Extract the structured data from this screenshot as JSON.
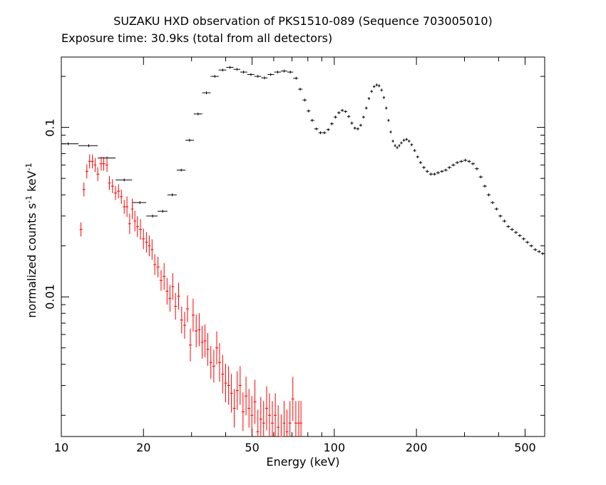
{
  "chart_data": {
    "type": "scatter",
    "title": "SUZAKU HXD observation of PKS1510-089 (Sequence 703005010)",
    "subtitle": "Exposure time: 30.9ks (total from all detectors)",
    "xlabel": "Energy (keV)",
    "ylabel": {
      "base": "normalized counts s",
      "exp1": "-1",
      "mid": " keV",
      "exp2": "-1"
    },
    "x_scale": "log",
    "y_scale": "log",
    "xlim": [
      10,
      590
    ],
    "ylim": [
      0.0015,
      0.26
    ],
    "x_ticks": [
      {
        "value": 10,
        "label": "10"
      },
      {
        "value": 20,
        "label": "20"
      },
      {
        "value": 50,
        "label": "50"
      },
      {
        "value": 100,
        "label": "100"
      },
      {
        "value": 200,
        "label": "200"
      },
      {
        "value": 500,
        "label": "500"
      }
    ],
    "y_ticks": [
      {
        "value": 0.1,
        "label": "0.1"
      },
      {
        "value": 0.01,
        "label": "0.01"
      }
    ],
    "grid": false,
    "series": [
      {
        "color": "#000000",
        "points": [
          [
            10.6,
            0.08,
            0.6
          ],
          [
            12.6,
            0.078,
            0.9
          ],
          [
            14.7,
            0.066,
            0.8
          ],
          [
            17.0,
            0.049,
            0.7
          ],
          [
            19.4,
            0.036,
            0.6
          ],
          [
            21.6,
            0.03,
            0.5
          ],
          [
            23.5,
            0.032,
            0.4
          ],
          [
            25.5,
            0.04,
            0.4
          ],
          [
            27.5,
            0.056,
            0.4
          ],
          [
            29.5,
            0.084,
            0.4
          ],
          [
            31.7,
            0.12,
            0.5
          ],
          [
            34.0,
            0.16,
            0.5
          ],
          [
            36.5,
            0.2,
            0.6
          ],
          [
            39.0,
            0.218,
            0.6
          ],
          [
            41.5,
            0.226,
            0.7
          ],
          [
            44.0,
            0.22,
            0.7
          ],
          [
            46.5,
            0.212,
            0.7
          ],
          [
            49.5,
            0.205,
            0.8
          ],
          [
            52.5,
            0.2,
            0.8
          ],
          [
            55.5,
            0.196,
            0.8
          ],
          [
            58.5,
            0.205,
            0.8
          ],
          [
            62.0,
            0.212,
            0.9
          ],
          [
            65.5,
            0.215,
            0.9
          ],
          [
            69.0,
            0.212,
            0.9
          ],
          [
            72.5,
            0.195,
            0.8
          ],
          [
            75.0,
            0.168,
            0.8
          ],
          [
            78.0,
            0.145,
            0.8
          ],
          [
            80.5,
            0.125,
            0.8
          ],
          [
            83.0,
            0.11,
            0.8
          ],
          [
            86.0,
            0.098,
            0.8
          ],
          [
            89.0,
            0.093,
            0.8
          ],
          [
            92.0,
            0.093,
            0.9
          ],
          [
            95.0,
            0.097,
            0.9
          ],
          [
            98.0,
            0.105,
            0.9
          ],
          [
            101.0,
            0.115,
            0.9
          ],
          [
            104.0,
            0.122,
            0.9
          ],
          [
            107.0,
            0.126,
            0.9
          ],
          [
            110.0,
            0.124,
            0.9
          ],
          [
            113.0,
            0.116,
            0.9
          ],
          [
            116.0,
            0.106,
            0.9
          ],
          [
            119.0,
            0.099,
            0.9
          ],
          [
            122.0,
            0.098,
            0.9
          ],
          [
            125.0,
            0.103,
            0.9
          ],
          [
            128.0,
            0.115,
            0.9
          ],
          [
            131.0,
            0.13,
            1.0
          ],
          [
            134.0,
            0.148,
            1.0
          ],
          [
            137.0,
            0.163,
            1.0
          ],
          [
            140.0,
            0.174,
            1.0
          ],
          [
            143.0,
            0.178,
            1.0
          ],
          [
            146.0,
            0.176,
            1.0
          ],
          [
            149.0,
            0.166,
            1.0
          ],
          [
            152.0,
            0.15,
            1.0
          ],
          [
            155.0,
            0.13,
            1.0
          ],
          [
            158.0,
            0.11,
            1.0
          ],
          [
            161.0,
            0.094,
            1.0
          ],
          [
            164.0,
            0.083,
            1.0
          ],
          [
            167.0,
            0.078,
            1.0
          ],
          [
            170.0,
            0.076,
            1.0
          ],
          [
            173.0,
            0.078,
            1.0
          ],
          [
            176.0,
            0.081,
            1.0
          ],
          [
            180.0,
            0.084,
            1.0
          ],
          [
            184.0,
            0.085,
            1.0
          ],
          [
            188.0,
            0.083,
            1.0
          ],
          [
            192.0,
            0.079,
            1.0
          ],
          [
            197.0,
            0.073,
            1.0
          ],
          [
            202.0,
            0.067,
            1.0
          ],
          [
            207.0,
            0.062,
            1.0
          ],
          [
            213.0,
            0.058,
            1.0
          ],
          [
            219.0,
            0.055,
            1.0
          ],
          [
            226.0,
            0.053,
            1.0
          ],
          [
            233.0,
            0.053,
            1.0
          ],
          [
            240.0,
            0.054,
            1.0
          ],
          [
            248.0,
            0.055,
            1.0
          ],
          [
            256.0,
            0.056,
            1.0
          ],
          [
            264.0,
            0.058,
            1.0
          ],
          [
            273.0,
            0.06,
            1.0
          ],
          [
            282.0,
            0.062,
            1.0
          ],
          [
            292.0,
            0.063,
            1.0
          ],
          [
            302.0,
            0.064,
            1.0
          ],
          [
            312.0,
            0.063,
            1.0
          ],
          [
            322.0,
            0.061,
            1.0
          ],
          [
            333.0,
            0.057,
            1.0
          ],
          [
            344.0,
            0.051,
            1.0
          ],
          [
            356.0,
            0.045,
            1.0
          ],
          [
            368.0,
            0.04,
            1.0
          ],
          [
            380.0,
            0.036,
            1.0
          ],
          [
            393.0,
            0.033,
            1.0
          ],
          [
            406.0,
            0.03,
            1.0
          ],
          [
            420.0,
            0.028,
            1.0
          ],
          [
            434.0,
            0.026,
            1.0
          ],
          [
            448.0,
            0.025,
            1.0
          ],
          [
            463.0,
            0.024,
            1.0
          ],
          [
            478.0,
            0.023,
            1.0
          ],
          [
            494.0,
            0.022,
            1.0
          ],
          [
            510.0,
            0.021,
            1.0
          ],
          [
            527.0,
            0.02,
            1.0
          ],
          [
            545.0,
            0.019,
            1.0
          ],
          [
            563.0,
            0.0185,
            1.0
          ],
          [
            580.0,
            0.018,
            1.0
          ]
        ]
      },
      {
        "color": "#ff0000",
        "points": [
          [
            11.8,
            0.025,
            1.1
          ],
          [
            12.1,
            0.043,
            1.1
          ],
          [
            12.4,
            0.055,
            1.1
          ],
          [
            12.7,
            0.063,
            1.1
          ],
          [
            13.0,
            0.063,
            1.1
          ],
          [
            13.3,
            0.06,
            1.1
          ],
          [
            13.6,
            0.053,
            1.1
          ],
          [
            14.0,
            0.061,
            1.1
          ],
          [
            14.3,
            0.061,
            1.1
          ],
          [
            14.7,
            0.06,
            1.1
          ],
          [
            15.0,
            0.047,
            1.1
          ],
          [
            15.4,
            0.045,
            1.1
          ],
          [
            15.8,
            0.041,
            1.1
          ],
          [
            16.2,
            0.042,
            1.1
          ],
          [
            16.6,
            0.039,
            1.1
          ],
          [
            17.0,
            0.034,
            1.1
          ],
          [
            17.4,
            0.034,
            1.15
          ],
          [
            17.8,
            0.027,
            1.15
          ],
          [
            18.2,
            0.033,
            1.15
          ],
          [
            18.6,
            0.028,
            1.15
          ],
          [
            19.0,
            0.026,
            1.15
          ],
          [
            19.5,
            0.025,
            1.15
          ],
          [
            20.0,
            0.022,
            1.15
          ],
          [
            20.5,
            0.021,
            1.15
          ],
          [
            21.0,
            0.02,
            1.15
          ],
          [
            21.5,
            0.019,
            1.15
          ],
          [
            22.0,
            0.0155,
            1.15
          ],
          [
            22.6,
            0.015,
            1.15
          ],
          [
            23.2,
            0.0125,
            1.15
          ],
          [
            23.8,
            0.0132,
            1.2
          ],
          [
            24.4,
            0.0108,
            1.2
          ],
          [
            25.0,
            0.0098,
            1.2
          ],
          [
            25.6,
            0.0115,
            1.2
          ],
          [
            26.2,
            0.0088,
            1.2
          ],
          [
            26.9,
            0.0101,
            1.2
          ],
          [
            27.6,
            0.0073,
            1.2
          ],
          [
            28.3,
            0.0068,
            1.2
          ],
          [
            29.0,
            0.0085,
            1.2
          ],
          [
            29.7,
            0.0052,
            1.25
          ],
          [
            30.4,
            0.0078,
            1.25
          ],
          [
            31.2,
            0.0063,
            1.25
          ],
          [
            32.0,
            0.0064,
            1.25
          ],
          [
            32.8,
            0.0054,
            1.25
          ],
          [
            33.6,
            0.0055,
            1.25
          ],
          [
            34.4,
            0.0049,
            1.25
          ],
          [
            35.3,
            0.0041,
            1.25
          ],
          [
            36.2,
            0.0039,
            1.25
          ],
          [
            37.1,
            0.005,
            1.25
          ],
          [
            38.0,
            0.0041,
            1.3
          ],
          [
            39.0,
            0.0035,
            1.3
          ],
          [
            40.0,
            0.0031,
            1.3
          ],
          [
            41.0,
            0.003,
            1.3
          ],
          [
            42.0,
            0.0027,
            1.3
          ],
          [
            43.0,
            0.0022,
            1.3
          ],
          [
            44.1,
            0.0028,
            1.3
          ],
          [
            45.2,
            0.003,
            1.3
          ],
          [
            46.3,
            0.0021,
            1.3
          ],
          [
            47.5,
            0.0026,
            1.3
          ],
          [
            48.7,
            0.0022,
            1.3
          ],
          [
            49.9,
            0.002,
            1.3
          ],
          [
            51.2,
            0.0024,
            1.35
          ],
          [
            52.5,
            0.0016,
            1.35
          ],
          [
            53.8,
            0.0019,
            1.35
          ],
          [
            55.1,
            0.0018,
            1.35
          ],
          [
            56.5,
            0.0022,
            1.35
          ],
          [
            57.9,
            0.002,
            1.35
          ],
          [
            59.3,
            0.0018,
            1.35
          ],
          [
            60.8,
            0.002,
            1.35
          ],
          [
            62.3,
            0.0017,
            1.35
          ],
          [
            63.9,
            0.0015,
            1.35
          ],
          [
            65.5,
            0.0018,
            1.35
          ],
          [
            67.1,
            0.0016,
            1.35
          ],
          [
            68.8,
            0.0018,
            1.35
          ],
          [
            70.5,
            0.0025,
            1.35
          ],
          [
            72.3,
            0.0018,
            1.35
          ],
          [
            74.1,
            0.0018,
            1.35
          ],
          [
            75.5,
            0.0018,
            1.35
          ]
        ]
      }
    ]
  }
}
